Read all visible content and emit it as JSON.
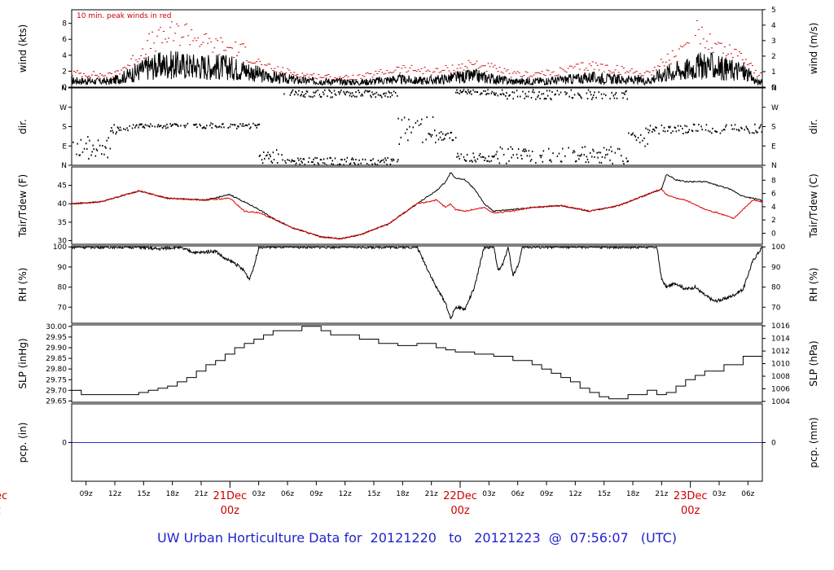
{
  "page": {
    "title_prefix": "UW Urban Horticulture Data for",
    "start": "20121220",
    "to": "to",
    "end": "20121223",
    "at": "@",
    "time": "07:56:07",
    "tz": "(UTC)"
  },
  "left_cut": {
    "line1": "ec",
    "line2": "z"
  },
  "x_axis": {
    "hour_ticks": [
      {
        "t": 1.5,
        "label": "09z"
      },
      {
        "t": 4.5,
        "label": "12z"
      },
      {
        "t": 7.5,
        "label": "15z"
      },
      {
        "t": 10.5,
        "label": "18z"
      },
      {
        "t": 13.5,
        "label": "21z"
      },
      {
        "t": 19.5,
        "label": "03z"
      },
      {
        "t": 22.5,
        "label": "06z"
      },
      {
        "t": 25.5,
        "label": "09z"
      },
      {
        "t": 28.5,
        "label": "12z"
      },
      {
        "t": 31.5,
        "label": "15z"
      },
      {
        "t": 34.5,
        "label": "18z"
      },
      {
        "t": 37.5,
        "label": "21z"
      },
      {
        "t": 43.5,
        "label": "03z"
      },
      {
        "t": 46.5,
        "label": "06z"
      },
      {
        "t": 49.5,
        "label": "09z"
      },
      {
        "t": 52.5,
        "label": "12z"
      },
      {
        "t": 55.5,
        "label": "15z"
      },
      {
        "t": 58.5,
        "label": "18z"
      },
      {
        "t": 61.5,
        "label": "21z"
      },
      {
        "t": 67.5,
        "label": "03z"
      },
      {
        "t": 70.5,
        "label": "06z"
      }
    ],
    "date_ticks": [
      {
        "t": 16.5,
        "date": "21Dec",
        "hour": "00z"
      },
      {
        "t": 40.5,
        "date": "22Dec",
        "hour": "00z"
      },
      {
        "t": 64.5,
        "date": "23Dec",
        "hour": "00z"
      }
    ],
    "range_hours": [
      0,
      72
    ]
  },
  "chart_data": [
    {
      "type": "line",
      "panel": "wind",
      "ylabel_left": "wind (kts)",
      "ylabel_right": "wind (m/s)",
      "annotation": "10 min. peak winds in red",
      "ylim": [
        0,
        9.7
      ],
      "yticks_left": [
        0,
        2,
        4,
        6,
        8
      ],
      "yticks_right_ms": [
        0,
        1,
        2,
        3,
        4,
        5
      ],
      "series": [
        {
          "color": "#000000",
          "style": "line",
          "x": [
            0,
            4,
            6,
            8,
            10,
            12,
            14,
            16,
            18,
            20,
            24,
            28,
            30,
            34,
            36,
            38,
            40,
            42,
            46,
            50,
            54,
            58,
            60,
            62,
            64,
            66,
            68,
            70,
            71.5
          ],
          "y": [
            0.8,
            0.7,
            1.5,
            2.5,
            2.8,
            2.7,
            2.6,
            2.5,
            2.2,
            1.4,
            0.8,
            0.7,
            0.6,
            1.0,
            0.8,
            0.9,
            1.2,
            1.4,
            0.7,
            0.8,
            1.2,
            0.9,
            0.8,
            1.8,
            2.2,
            2.8,
            2.3,
            2.0,
            0.6
          ]
        },
        {
          "color": "#cc0000",
          "style": "points",
          "x": [
            0,
            4,
            6,
            8,
            10,
            12,
            14,
            16,
            18,
            20,
            24,
            28,
            30,
            34,
            36,
            38,
            40,
            42,
            46,
            50,
            54,
            58,
            60,
            62,
            64,
            64.5,
            66,
            68,
            70,
            71.5
          ],
          "y": [
            1.8,
            1.5,
            3.0,
            5.5,
            6.5,
            7.0,
            5.5,
            5.0,
            4.5,
            2.5,
            1.6,
            1.2,
            1.3,
            2.3,
            2.2,
            2.0,
            2.5,
            3.0,
            1.6,
            1.8,
            2.8,
            2.0,
            1.8,
            3.5,
            4.5,
            9.5,
            6.0,
            4.8,
            4.0,
            1.5
          ]
        }
      ]
    },
    {
      "type": "scatter",
      "panel": "dir",
      "ylabel_left": "dir.",
      "ylabel_right": "dir.",
      "ylim": [
        0,
        360
      ],
      "yticks_left": [
        {
          "v": 0,
          "label": "N"
        },
        {
          "v": 90,
          "label": "E"
        },
        {
          "v": 180,
          "label": "S"
        },
        {
          "v": 270,
          "label": "W"
        },
        {
          "v": 360,
          "label": "N"
        }
      ],
      "series": [
        {
          "color": "#000000",
          "style": "dots",
          "segments": [
            {
              "x0": 0,
              "x1": 4,
              "ymin": 30,
              "ymax": 140
            },
            {
              "x0": 4,
              "x1": 6,
              "ymin": 150,
              "ymax": 200
            },
            {
              "x0": 6,
              "x1": 19.5,
              "ymin": 175,
              "ymax": 200
            },
            {
              "x0": 19.5,
              "x1": 22,
              "ymin": 10,
              "ymax": 80
            },
            {
              "x0": 22,
              "x1": 34,
              "ymin": 5,
              "ymax": 40
            },
            {
              "x0": 22,
              "x1": 34,
              "ymin": 320,
              "ymax": 355
            },
            {
              "x0": 34,
              "x1": 38,
              "ymin": 100,
              "ymax": 230
            },
            {
              "x0": 38,
              "x1": 40,
              "ymin": 120,
              "ymax": 160
            },
            {
              "x0": 40,
              "x1": 44,
              "ymin": 330,
              "ymax": 355
            },
            {
              "x0": 40,
              "x1": 44,
              "ymin": 20,
              "ymax": 60
            },
            {
              "x0": 44,
              "x1": 58,
              "ymin": 310,
              "ymax": 355
            },
            {
              "x0": 44,
              "x1": 58,
              "ymin": 10,
              "ymax": 90
            },
            {
              "x0": 58,
              "x1": 60,
              "ymin": 90,
              "ymax": 180
            },
            {
              "x0": 60,
              "x1": 72,
              "ymin": 150,
              "ymax": 195
            }
          ]
        }
      ]
    },
    {
      "type": "line",
      "panel": "temp",
      "ylabel_left": "Tair/Tdew (F)",
      "ylabel_right": "Tair/Tdew (C)",
      "ylim": [
        29,
        50
      ],
      "yticks_left": [
        30,
        35,
        40,
        45
      ],
      "yticks_right_c": [
        0,
        2,
        4,
        6,
        8
      ],
      "series": [
        {
          "name": "Tair",
          "color": "#000000",
          "x": [
            0,
            3,
            7,
            10,
            14,
            16.5,
            18,
            19.5,
            21,
            23,
            26,
            28,
            30,
            33,
            36,
            38,
            39,
            39.5,
            40,
            41,
            42,
            43,
            44,
            46,
            48,
            51,
            54,
            57,
            60,
            61.5,
            62,
            63,
            64,
            66,
            68,
            69,
            70,
            71,
            72
          ],
          "y": [
            40.0,
            40.5,
            43.5,
            41.5,
            41.0,
            42.5,
            40.5,
            38.5,
            36.0,
            33.5,
            31.0,
            30.5,
            31.5,
            34.5,
            40.0,
            43.5,
            46.0,
            48.5,
            47.0,
            46.5,
            44.0,
            40.0,
            38.0,
            38.5,
            39.0,
            39.5,
            38.0,
            39.5,
            42.5,
            44.0,
            48.0,
            46.5,
            46.0,
            46.0,
            44.5,
            43.5,
            42.0,
            41.5,
            41.0
          ]
        },
        {
          "name": "Tdew",
          "color": "#dd0000",
          "x": [
            0,
            3,
            7,
            10,
            14,
            16.5,
            18,
            19.5,
            21,
            23,
            26,
            28,
            30,
            33,
            36,
            38,
            39,
            39.5,
            40,
            41,
            42,
            43,
            44,
            46,
            48,
            51,
            54,
            57,
            60,
            61.5,
            62,
            63,
            64,
            66,
            68,
            69,
            70,
            71,
            72
          ],
          "y": [
            40.0,
            40.5,
            43.5,
            41.5,
            41.0,
            41.5,
            38.0,
            37.5,
            36.0,
            33.5,
            31.0,
            30.5,
            31.5,
            34.5,
            40.0,
            41.0,
            39.0,
            40.0,
            38.5,
            38.0,
            38.5,
            39.0,
            37.5,
            38.0,
            39.0,
            39.5,
            38.0,
            39.5,
            42.5,
            44.0,
            42.5,
            41.5,
            41.0,
            38.5,
            37.0,
            36.0,
            38.5,
            41.0,
            40.5
          ]
        }
      ]
    },
    {
      "type": "line",
      "panel": "rh",
      "ylabel_left": "RH (%)",
      "ylabel_right": "RH (%)",
      "ylim": [
        62,
        100.5
      ],
      "yticks_left": [
        70,
        80,
        90,
        100
      ],
      "series": [
        {
          "color": "#000000",
          "x": [
            0,
            7,
            9,
            11,
            13,
            15,
            16,
            17,
            18,
            18.5,
            19,
            19.5,
            20,
            36,
            36.5,
            37,
            38,
            39,
            39.5,
            40,
            41,
            42,
            42.5,
            43,
            44,
            44.5,
            45,
            45.5,
            46,
            46.5,
            47,
            47.5,
            61,
            61.5,
            62,
            63,
            64,
            65,
            66,
            67,
            68,
            69,
            70,
            70.5,
            71,
            72
          ],
          "y": [
            100,
            100,
            99,
            100,
            97,
            98,
            94,
            92,
            88,
            84,
            90,
            100,
            100,
            100,
            95,
            90,
            80,
            72,
            64,
            70,
            69,
            80,
            90,
            100,
            100,
            88,
            92,
            100,
            86,
            90,
            100,
            100,
            100,
            84,
            80,
            82,
            79,
            80,
            76,
            73,
            74,
            76,
            79,
            86,
            93,
            100
          ]
        }
      ]
    },
    {
      "type": "line",
      "panel": "slp",
      "ylabel_left": "SLP (inHg)",
      "ylabel_right": "SLP (hPa)",
      "ylim": [
        29.644,
        30.007
      ],
      "yticks_left": [
        29.65,
        29.7,
        29.75,
        29.8,
        29.85,
        29.9,
        29.95,
        30.0
      ],
      "yticks_right_hpa": [
        1004,
        1006,
        1008,
        1010,
        1012,
        1014,
        1016
      ],
      "series": [
        {
          "color": "#000000",
          "style": "step",
          "x": [
            0,
            1,
            7,
            8,
            9,
            10,
            11,
            12,
            13,
            14,
            15,
            16,
            17,
            18,
            19,
            20,
            21,
            24,
            26,
            27,
            30,
            32,
            34,
            36,
            38,
            39,
            40,
            42,
            44,
            46,
            48,
            49,
            50,
            51,
            52,
            53,
            54,
            55,
            56,
            58,
            60,
            61,
            62,
            63,
            64,
            65,
            66,
            68,
            70,
            72
          ],
          "y": [
            29.7,
            29.68,
            29.69,
            29.7,
            29.71,
            29.72,
            29.74,
            29.76,
            29.79,
            29.82,
            29.84,
            29.87,
            29.9,
            29.92,
            29.94,
            29.96,
            29.98,
            30.0,
            29.98,
            29.96,
            29.94,
            29.92,
            29.91,
            29.92,
            29.9,
            29.89,
            29.88,
            29.87,
            29.86,
            29.84,
            29.82,
            29.8,
            29.78,
            29.76,
            29.74,
            29.71,
            29.69,
            29.67,
            29.66,
            29.68,
            29.7,
            29.68,
            29.69,
            29.72,
            29.75,
            29.77,
            29.79,
            29.82,
            29.86,
            29.89
          ]
        }
      ]
    },
    {
      "type": "line",
      "panel": "pcp",
      "ylabel_left": "pcp. (in)",
      "ylabel_right": "pcp. (mm)",
      "ylim": [
        -1,
        1
      ],
      "yticks_left": [
        0
      ],
      "yticks_right_mm": [
        0
      ],
      "series": [
        {
          "color": "#2233cc",
          "x": [
            0,
            72
          ],
          "y": [
            0,
            0
          ]
        }
      ]
    }
  ]
}
